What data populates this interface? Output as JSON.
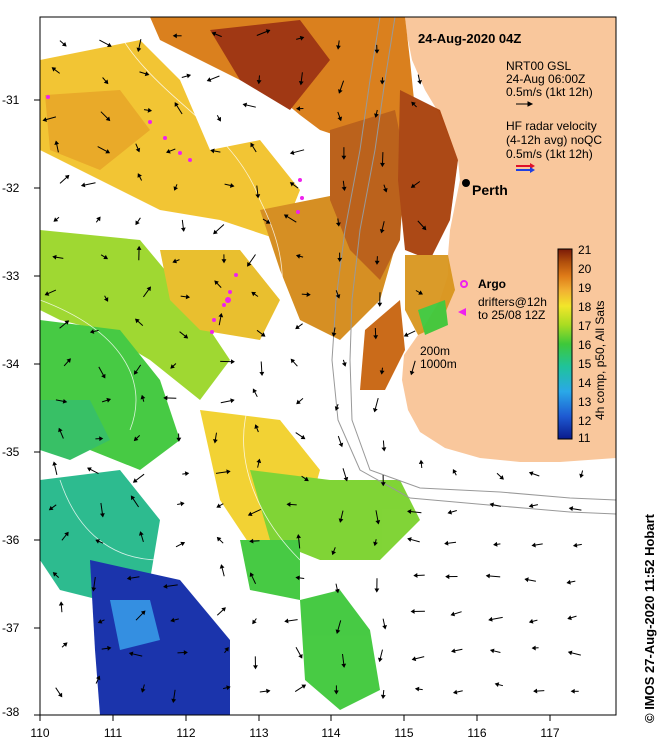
{
  "map": {
    "title": "24-Aug-2020 04Z",
    "city_label": "Perth",
    "legend": {
      "gsl_lines": [
        "NRT00 GSL",
        "24-Aug 06:00Z",
        "0.5m/s (1kt 12h)"
      ],
      "radar_lines": [
        "HF radar velocity",
        "(4-12h avg) noQC",
        "0.5m/s (1kt 12h)"
      ],
      "argo_label": "Argo",
      "drifters_lines": [
        "drifters@12h",
        "to 25/08 12Z"
      ],
      "depth_lines": [
        "200m",
        "1000m"
      ]
    },
    "colorbar": {
      "ticks": [
        "21",
        "20",
        "19",
        "18",
        "17",
        "16",
        "15",
        "14",
        "13",
        "12",
        "11"
      ],
      "label": "4h comp, p50, All Sats"
    },
    "credit": "© IMOS 27-Aug-2020 11:52 Hobart",
    "x_ticks": [
      "110",
      "111",
      "112",
      "113",
      "114",
      "115",
      "116",
      "117"
    ],
    "y_ticks": [
      "-31",
      "-32",
      "-33",
      "-34",
      "-35",
      "-36",
      "-37",
      "-38"
    ],
    "colors": {
      "land": "#f9c79c",
      "ocean_bg": "#ffffff",
      "radar_a": "#e0102a",
      "radar_b": "#2040e0",
      "drifter": "#ee22ee"
    }
  }
}
